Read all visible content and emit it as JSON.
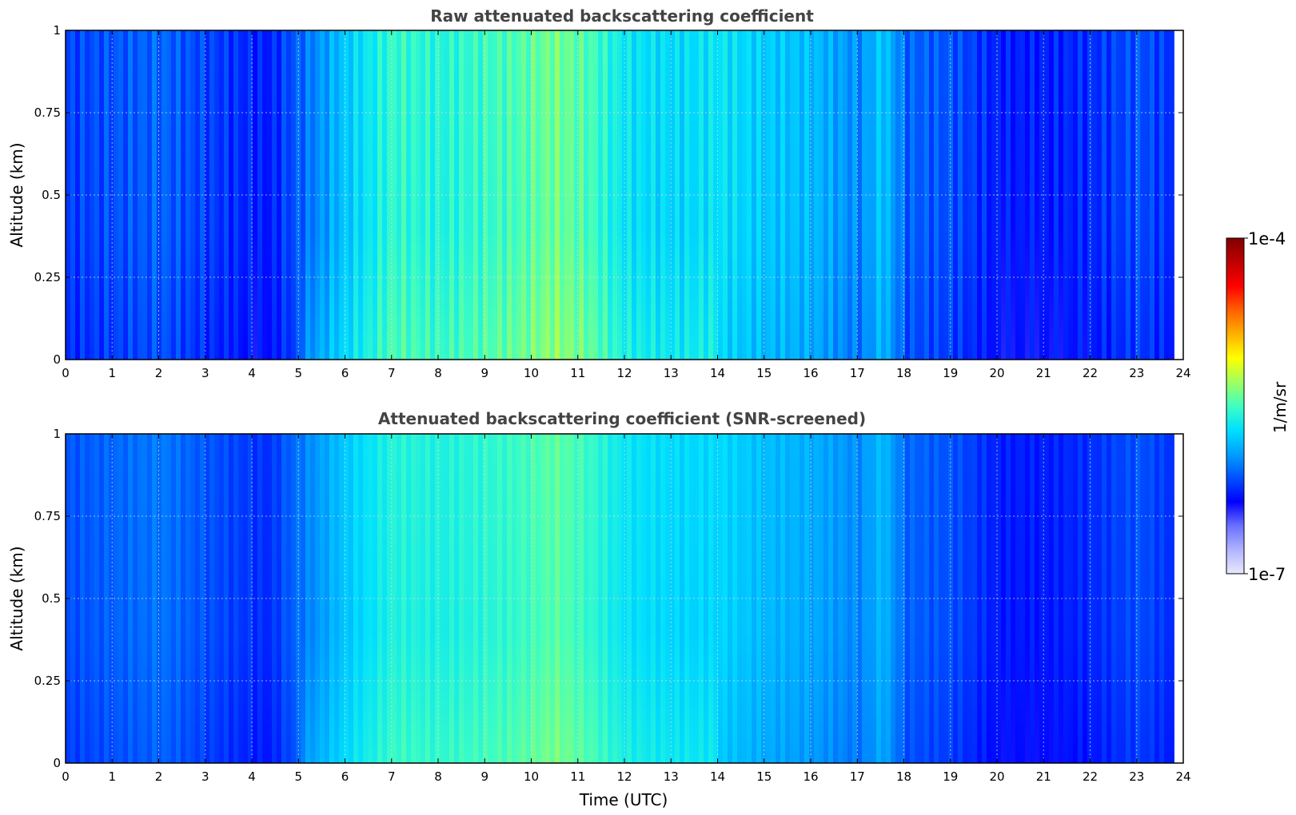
{
  "colors": {
    "scale": [
      "#e8e8ff",
      "#b0b4ff",
      "#6a70ff",
      "#0000ff",
      "#0050ff",
      "#00a0ff",
      "#00e0ff",
      "#40ffc0",
      "#a0ff60",
      "#ffff00",
      "#ffb000",
      "#ff6000",
      "#ff0000",
      "#c00000",
      "#800000"
    ]
  },
  "colorbar": {
    "label": "1/m/sr",
    "min_label": "1e-7",
    "max_label": "1e-4",
    "log_min": -7,
    "log_max": -4
  },
  "chart_data": [
    {
      "type": "heatmap",
      "title": "Raw attenuated backscattering coefficient",
      "xlabel": "",
      "ylabel": "Altitude (km)",
      "xlim": [
        0,
        24
      ],
      "ylim": [
        0,
        1
      ],
      "xticks": [
        "0",
        "1",
        "2",
        "3",
        "4",
        "5",
        "6",
        "7",
        "8",
        "9",
        "10",
        "11",
        "12",
        "13",
        "14",
        "15",
        "16",
        "17",
        "18",
        "19",
        "20",
        "21",
        "22",
        "23",
        "24"
      ],
      "yticks": [
        "0",
        "0.25",
        "0.5",
        "0.75",
        "1"
      ],
      "grid": true,
      "data_end_time": 23.8,
      "log10_backscatter_profile": {
        "time": [
          0,
          2,
          3,
          4.3,
          5,
          6,
          7,
          8,
          9.5,
          10.5,
          11.2,
          12,
          13,
          14,
          15,
          16,
          17,
          17.5,
          18,
          19,
          20,
          21,
          22,
          23,
          23.8
        ],
        "value": [
          -6.2,
          -6.1,
          -6.2,
          -6.3,
          -6.1,
          -5.8,
          -5.55,
          -5.6,
          -5.5,
          -5.4,
          -5.5,
          -5.7,
          -5.75,
          -5.7,
          -5.8,
          -5.85,
          -6.0,
          -5.8,
          -6.1,
          -6.15,
          -6.3,
          -6.3,
          -6.25,
          -6.15,
          -6.25
        ]
      }
    },
    {
      "type": "heatmap",
      "title": "Attenuated backscattering coefficient (SNR-screened)",
      "xlabel": "Time (UTC)",
      "ylabel": "Altitude (km)",
      "xlim": [
        0,
        24
      ],
      "ylim": [
        0,
        1
      ],
      "xticks": [
        "0",
        "1",
        "2",
        "3",
        "4",
        "5",
        "6",
        "7",
        "8",
        "9",
        "10",
        "11",
        "12",
        "13",
        "14",
        "15",
        "16",
        "17",
        "18",
        "19",
        "20",
        "21",
        "22",
        "23",
        "24"
      ],
      "yticks": [
        "0",
        "0.25",
        "0.5",
        "0.75",
        "1"
      ],
      "grid": true,
      "data_end_time": 23.8,
      "log10_backscatter_profile": {
        "time": [
          0,
          2,
          3,
          4.3,
          5,
          6,
          7,
          8,
          9.5,
          10.5,
          11.2,
          12,
          13,
          14,
          15,
          16,
          17,
          17.5,
          18,
          19,
          20,
          21,
          22,
          23,
          23.8
        ],
        "value": [
          -6.15,
          -6.05,
          -6.15,
          -6.25,
          -6.05,
          -5.8,
          -5.6,
          -5.62,
          -5.55,
          -5.45,
          -5.55,
          -5.7,
          -5.75,
          -5.75,
          -5.85,
          -5.9,
          -6.0,
          -5.85,
          -6.1,
          -6.15,
          -6.3,
          -6.3,
          -6.25,
          -6.15,
          -6.25
        ]
      }
    }
  ]
}
